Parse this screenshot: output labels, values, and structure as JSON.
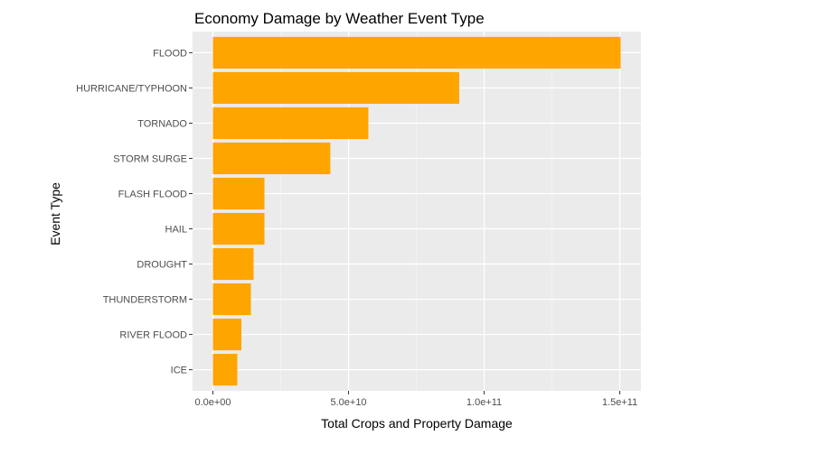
{
  "chart_data": {
    "type": "bar",
    "orientation": "horizontal",
    "title": "Economy Damage by Weather Event Type",
    "xlabel": "Total Crops and Property Damage",
    "ylabel": "Event Type",
    "categories": [
      "FLOOD",
      "HURRICANE/TYPHOON",
      "TORNADO",
      "STORM SURGE",
      "FLASH FLOOD",
      "HAIL",
      "DROUGHT",
      "THUNDERSTORM",
      "RIVER FLOOD",
      "ICE"
    ],
    "values": [
      150300000000,
      90800000000,
      57300000000,
      43300000000,
      19000000000,
      19000000000,
      15000000000,
      14000000000,
      10500000000,
      9000000000
    ],
    "xlim": [
      -7500000000,
      157800000000
    ],
    "xticks": [
      0,
      50000000000,
      100000000000,
      150000000000
    ],
    "xtick_labels": [
      "0.0e+00",
      "5.0e+10",
      "1.0e+11",
      "1.5e+11"
    ],
    "grid": true,
    "legend": "none",
    "colors": {
      "bar": "#FFA500",
      "panel": "#EBEBEB",
      "grid_major": "#FFFFFF",
      "grid_minor": "#F5F5F5",
      "text": "#4D4D4D"
    }
  }
}
